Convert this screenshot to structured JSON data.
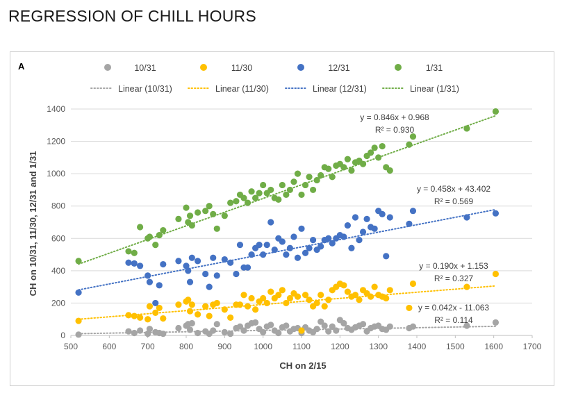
{
  "page": {
    "title": "REGRESSION OF CHILL HOURS"
  },
  "chart_data": {
    "type": "scatter",
    "panel_label": "A",
    "xlabel": "CH on 2/15",
    "ylabel": "CH on 10/31, 11/30, 12/31 and 1/31",
    "xlim": [
      500,
      1700
    ],
    "ylim": [
      0,
      1400
    ],
    "xticks": [
      "500",
      "600",
      "700",
      "800",
      "900",
      "1000",
      "1100",
      "1200",
      "1300",
      "1400",
      "1500",
      "1600",
      "1700"
    ],
    "yticks": [
      "0",
      "200",
      "400",
      "600",
      "800",
      "1000",
      "1200",
      "1400"
    ],
    "grid": "horizontal",
    "legend_position": "top",
    "colors": {
      "10/31": "#a5a5a5",
      "11/30": "#ffc000",
      "12/31": "#4472c4",
      "1/31": "#70ad47"
    },
    "x": [
      520,
      650,
      665,
      680,
      700,
      705,
      720,
      730,
      740,
      780,
      800,
      805,
      810,
      815,
      830,
      850,
      860,
      870,
      880,
      900,
      915,
      930,
      940,
      950,
      960,
      970,
      980,
      990,
      1000,
      1010,
      1020,
      1030,
      1040,
      1050,
      1060,
      1070,
      1080,
      1090,
      1100,
      1110,
      1120,
      1130,
      1140,
      1150,
      1160,
      1170,
      1180,
      1190,
      1200,
      1210,
      1220,
      1230,
      1240,
      1250,
      1260,
      1270,
      1280,
      1290,
      1300,
      1310,
      1320,
      1330,
      1380,
      1390,
      1530,
      1605
    ],
    "series": [
      {
        "name": "10/31",
        "y": [
          5,
          25,
          15,
          30,
          10,
          40,
          20,
          15,
          10,
          45,
          60,
          70,
          35,
          75,
          15,
          25,
          10,
          30,
          70,
          20,
          10,
          45,
          55,
          30,
          60,
          75,
          80,
          40,
          20,
          55,
          65,
          30,
          15,
          50,
          60,
          25,
          40,
          45,
          15,
          50,
          30,
          20,
          40,
          85,
          60,
          25,
          55,
          30,
          95,
          75,
          45,
          35,
          50,
          60,
          70,
          25,
          45,
          55,
          60,
          40,
          35,
          55,
          45,
          55,
          60,
          80
        ],
        "fit": {
          "slope": 0.042,
          "intercept": -11.063,
          "equation": "y = 0.042x - 11.063",
          "r2": "R² = 0.114"
        }
      },
      {
        "name": "11/30",
        "y": [
          90,
          125,
          120,
          110,
          100,
          180,
          140,
          170,
          105,
          190,
          210,
          220,
          150,
          190,
          130,
          180,
          120,
          190,
          200,
          160,
          110,
          190,
          190,
          250,
          180,
          230,
          160,
          210,
          230,
          200,
          270,
          230,
          250,
          280,
          200,
          230,
          260,
          240,
          30,
          250,
          220,
          180,
          200,
          250,
          180,
          220,
          280,
          300,
          320,
          310,
          270,
          240,
          250,
          220,
          280,
          260,
          240,
          300,
          250,
          240,
          230,
          280,
          170,
          320,
          300,
          380
        ],
        "fit": {
          "slope": 0.19,
          "intercept": 1.153,
          "equation": "y = 0.190x + 1.153",
          "r2": "R² = 0.327"
        }
      },
      {
        "name": "12/31",
        "y": [
          265,
          450,
          445,
          430,
          370,
          330,
          200,
          310,
          440,
          460,
          430,
          400,
          330,
          480,
          460,
          380,
          300,
          480,
          370,
          470,
          450,
          380,
          560,
          420,
          420,
          500,
          540,
          560,
          500,
          560,
          700,
          530,
          600,
          580,
          500,
          540,
          610,
          480,
          660,
          510,
          540,
          590,
          530,
          550,
          590,
          600,
          570,
          600,
          620,
          610,
          680,
          540,
          730,
          590,
          640,
          720,
          670,
          660,
          770,
          750,
          490,
          730,
          690,
          770,
          730,
          755
        ],
        "fit": {
          "slope": 0.458,
          "intercept": 43.402,
          "equation": "y = 0.458x + 43.402",
          "r2": "R² = 0.569"
        }
      },
      {
        "name": "1/31",
        "y": [
          460,
          520,
          510,
          670,
          600,
          610,
          560,
          620,
          650,
          720,
          790,
          700,
          740,
          680,
          760,
          770,
          800,
          750,
          660,
          740,
          820,
          830,
          870,
          850,
          820,
          890,
          850,
          880,
          930,
          880,
          900,
          850,
          840,
          930,
          870,
          900,
          950,
          1000,
          870,
          930,
          980,
          900,
          960,
          990,
          1040,
          1030,
          980,
          1050,
          1060,
          1040,
          1090,
          1020,
          1070,
          1080,
          1060,
          1110,
          1130,
          1160,
          1100,
          1170,
          1040,
          1020,
          1180,
          1230,
          1280,
          1385
        ],
        "fit": {
          "slope": 0.846,
          "intercept": 0.968,
          "equation": "y = 0.846x + 0.968",
          "r2": "R² = 0.930"
        }
      }
    ],
    "legend_markers": [
      "10/31",
      "11/30",
      "12/31",
      "1/31"
    ],
    "legend_lines": [
      "Linear (10/31)",
      "Linear (11/30)",
      "Linear (12/31)",
      "Linear (1/31)"
    ]
  }
}
